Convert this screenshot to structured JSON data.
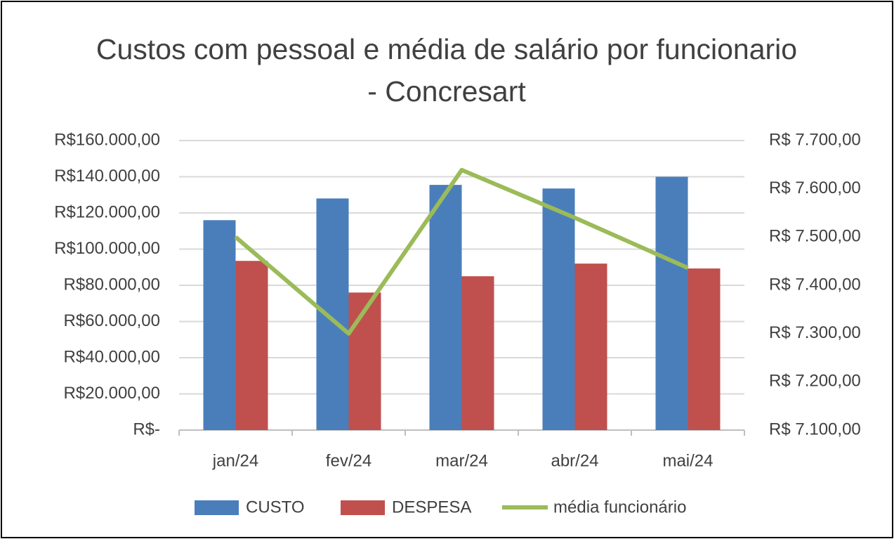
{
  "chart_data": {
    "type": "bar_line",
    "title": "Custos com pessoal e média de salário por funcionario - Concresart",
    "categories": [
      "jan/24",
      "fev/24",
      "mar/24",
      "abr/24",
      "mai/24"
    ],
    "series": [
      {
        "name": "CUSTO",
        "color": "#4a7ebb",
        "type": "bar",
        "values": [
          116000,
          128000,
          135500,
          133500,
          140000
        ]
      },
      {
        "name": "DESPESA",
        "color": "#c0504d",
        "type": "bar",
        "values": [
          93500,
          76000,
          85000,
          92000,
          89300
        ]
      },
      {
        "name": "média funcionário",
        "color": "#9bbb59",
        "type": "line",
        "axis": "y2",
        "values": [
          7500,
          7300,
          7639,
          7540,
          7436
        ]
      }
    ],
    "ylim": [
      0,
      160000
    ],
    "yticks": [
      {
        "value": 0,
        "label": "R$-"
      },
      {
        "value": 20000,
        "label": "R$20.000,00"
      },
      {
        "value": 40000,
        "label": "R$40.000,00"
      },
      {
        "value": 60000,
        "label": "R$60.000,00"
      },
      {
        "value": 80000,
        "label": "R$80.000,00"
      },
      {
        "value": 100000,
        "label": "R$100.000,00"
      },
      {
        "value": 120000,
        "label": "R$120.000,00"
      },
      {
        "value": 140000,
        "label": "R$140.000,00"
      },
      {
        "value": 160000,
        "label": "R$160.000,00"
      }
    ],
    "y2lim": [
      7100,
      7700
    ],
    "y2ticks": [
      {
        "value": 7100,
        "label": "R$ 7.100,00"
      },
      {
        "value": 7200,
        "label": "R$ 7.200,00"
      },
      {
        "value": 7300,
        "label": "R$ 7.300,00"
      },
      {
        "value": 7400,
        "label": "R$ 7.400,00"
      },
      {
        "value": 7500,
        "label": "R$ 7.500,00"
      },
      {
        "value": 7600,
        "label": "R$ 7.600,00"
      },
      {
        "value": 7700,
        "label": "R$ 7.700,00"
      }
    ],
    "grid": true,
    "legend": "bottom"
  }
}
